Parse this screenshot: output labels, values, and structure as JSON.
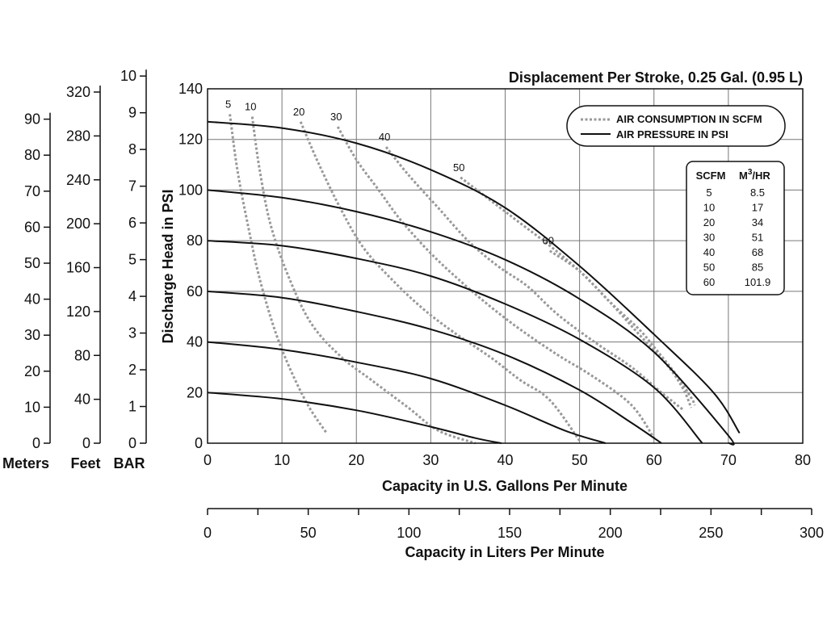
{
  "chart_data": {
    "type": "line",
    "title": "Displacement Per Stroke, 0.25 Gal. (0.95 L)",
    "xlabel": "Capacity in U.S. Gallons Per Minute",
    "x2label": "Capacity in Liters Per Minute",
    "ylabel": "Discharge Head in PSI",
    "xlim": [
      0,
      80
    ],
    "ylim": [
      0,
      140
    ],
    "x_ticks": [
      "0",
      "10",
      "20",
      "30",
      "40",
      "50",
      "60",
      "70",
      "80"
    ],
    "y_ticks": [
      "0",
      "20",
      "40",
      "60",
      "80",
      "100",
      "120",
      "140"
    ],
    "x2_ticks": [
      "0",
      "50",
      "100",
      "150",
      "200",
      "250",
      "300"
    ],
    "secondary_axes": [
      {
        "label": "Meters",
        "ticks": [
          "0",
          "10",
          "20",
          "30",
          "40",
          "50",
          "60",
          "70",
          "80",
          "90"
        ]
      },
      {
        "label": "Feet",
        "ticks": [
          "0",
          "40",
          "80",
          "120",
          "160",
          "200",
          "240",
          "280",
          "320"
        ]
      },
      {
        "label": "BAR",
        "ticks": [
          "0",
          "1",
          "2",
          "3",
          "4",
          "5",
          "6",
          "7",
          "8",
          "9",
          "10"
        ]
      }
    ],
    "legend": {
      "position": "top-right",
      "items": [
        {
          "label": "AIR CONSUMPTION IN SCFM",
          "style": "dotted"
        },
        {
          "label": "AIR PRESSURE IN PSI",
          "style": "solid"
        }
      ]
    },
    "scfm_table": {
      "headers": [
        "SCFM",
        "M",
        "3",
        "/HR"
      ],
      "rows": [
        [
          "5",
          "8.5"
        ],
        [
          "10",
          "17"
        ],
        [
          "20",
          "34"
        ],
        [
          "30",
          "51"
        ],
        [
          "40",
          "68"
        ],
        [
          "50",
          "85"
        ],
        [
          "60",
          "101.9"
        ]
      ]
    },
    "pressure_series": [
      {
        "points": [
          [
            0,
            20
          ],
          [
            10,
            17.5
          ],
          [
            20,
            13
          ],
          [
            30,
            6.5
          ],
          [
            36,
            2
          ],
          [
            39.5,
            0
          ]
        ]
      },
      {
        "points": [
          [
            0,
            40
          ],
          [
            10,
            37
          ],
          [
            20,
            32
          ],
          [
            30,
            25.5
          ],
          [
            40,
            15
          ],
          [
            48,
            5
          ],
          [
            53.5,
            0
          ]
        ]
      },
      {
        "points": [
          [
            0,
            60
          ],
          [
            10,
            57.5
          ],
          [
            20,
            52
          ],
          [
            30,
            45
          ],
          [
            40,
            35
          ],
          [
            50,
            21
          ],
          [
            57,
            8
          ],
          [
            61,
            0
          ]
        ]
      },
      {
        "points": [
          [
            0,
            80
          ],
          [
            10,
            78
          ],
          [
            20,
            73
          ],
          [
            30,
            66
          ],
          [
            40,
            55
          ],
          [
            50,
            41
          ],
          [
            60,
            22
          ],
          [
            66.5,
            0
          ]
        ]
      },
      {
        "points": [
          [
            0,
            100
          ],
          [
            10,
            97
          ],
          [
            20,
            91.5
          ],
          [
            30,
            83.5
          ],
          [
            40,
            72.5
          ],
          [
            50,
            57
          ],
          [
            60,
            36
          ],
          [
            70,
            3
          ],
          [
            70,
            0
          ]
        ]
      },
      {
        "points": [
          [
            0,
            127
          ],
          [
            10,
            124.5
          ],
          [
            20,
            118.5
          ],
          [
            30,
            108
          ],
          [
            40,
            93
          ],
          [
            50,
            70
          ],
          [
            60,
            43
          ],
          [
            68,
            20
          ],
          [
            71.5,
            4
          ]
        ]
      }
    ],
    "air_series": [
      {
        "label": "5",
        "points": [
          [
            3,
            130
          ],
          [
            4,
            108
          ],
          [
            5.5,
            85
          ],
          [
            7,
            65
          ],
          [
            9,
            45
          ],
          [
            11,
            30
          ],
          [
            13.5,
            15
          ],
          [
            16,
            4
          ]
        ]
      },
      {
        "label": "10",
        "points": [
          [
            6,
            129
          ],
          [
            7,
            108
          ],
          [
            8.5,
            86
          ],
          [
            11,
            65
          ],
          [
            14,
            47
          ],
          [
            18,
            34
          ],
          [
            22,
            25
          ],
          [
            27,
            14
          ],
          [
            31,
            5
          ],
          [
            36,
            0
          ]
        ]
      },
      {
        "label": "20",
        "points": [
          [
            12.5,
            127
          ],
          [
            15,
            110
          ],
          [
            18,
            92
          ],
          [
            21,
            77
          ],
          [
            25,
            64
          ],
          [
            29,
            53
          ],
          [
            33,
            44
          ],
          [
            38,
            34
          ],
          [
            42,
            25
          ],
          [
            46,
            17
          ],
          [
            50,
            1
          ]
        ]
      },
      {
        "label": "30",
        "points": [
          [
            17.5,
            125
          ],
          [
            20,
            112
          ],
          [
            23,
            100
          ],
          [
            26,
            88
          ],
          [
            30,
            75
          ],
          [
            34,
            64
          ],
          [
            38,
            54
          ],
          [
            42,
            45
          ],
          [
            47,
            35
          ],
          [
            52,
            26
          ],
          [
            57,
            15
          ],
          [
            60,
            2
          ]
        ]
      },
      {
        "label": "40",
        "points": [
          [
            24,
            117
          ],
          [
            27,
            106
          ],
          [
            31,
            93
          ],
          [
            35,
            80
          ],
          [
            39,
            70
          ],
          [
            43,
            62
          ],
          [
            47,
            51
          ],
          [
            52,
            40
          ],
          [
            57,
            30
          ],
          [
            61,
            20
          ],
          [
            64,
            13
          ]
        ]
      },
      {
        "label": "50",
        "points": [
          [
            34,
            105
          ],
          [
            38,
            96
          ],
          [
            42,
            87
          ],
          [
            46,
            78
          ],
          [
            50,
            68
          ],
          [
            54,
            56
          ],
          [
            58,
            43
          ],
          [
            62,
            30
          ],
          [
            64,
            21
          ],
          [
            65,
            14
          ]
        ]
      },
      {
        "label": "60",
        "points": [
          [
            46,
            76
          ],
          [
            50,
            68
          ],
          [
            54,
            56
          ],
          [
            58,
            45
          ],
          [
            60,
            38
          ],
          [
            63,
            27
          ],
          [
            65,
            18
          ],
          [
            65.5,
            15
          ]
        ]
      }
    ]
  }
}
